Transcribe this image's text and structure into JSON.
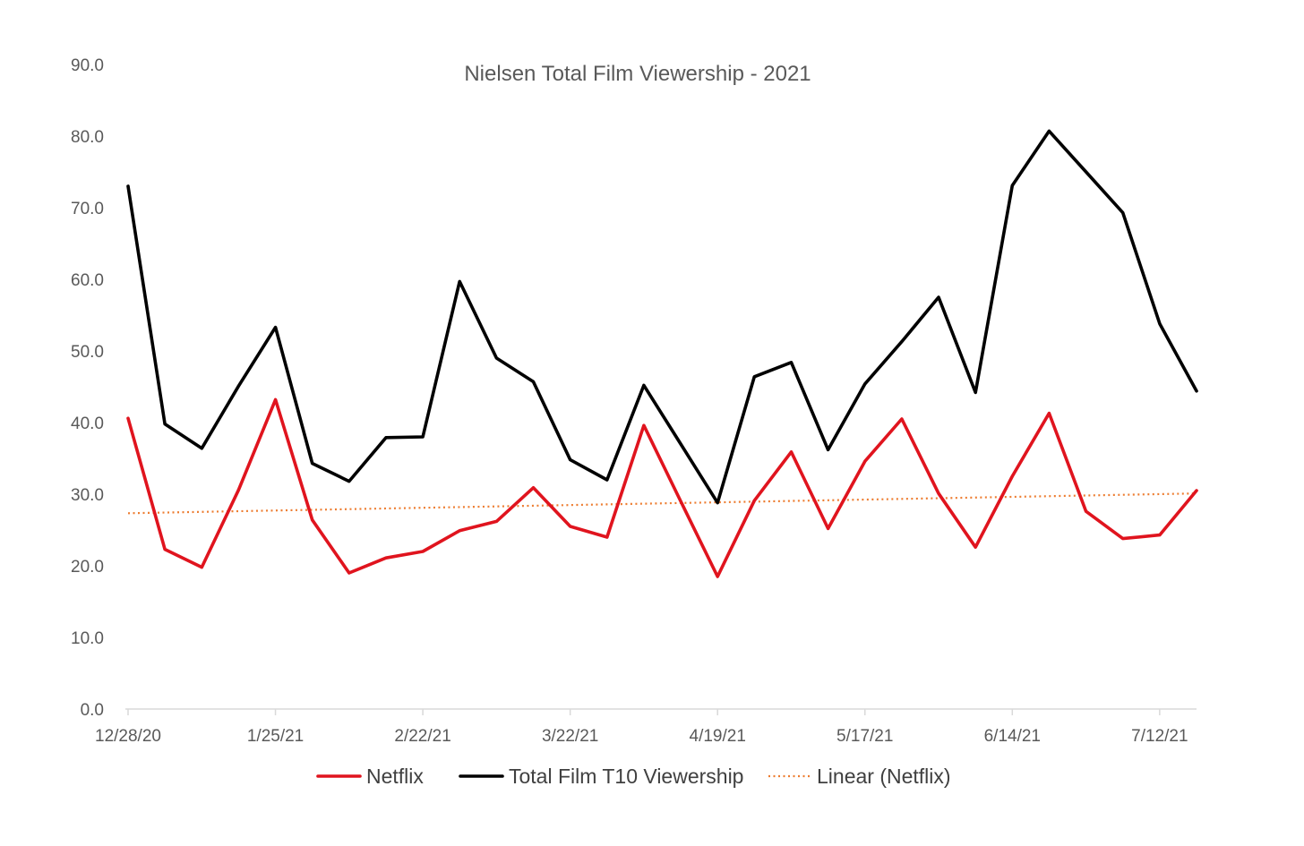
{
  "chart_data": {
    "type": "line",
    "title": "Nielsen Total Film Viewership - 2021",
    "xlabel": "",
    "ylabel": "",
    "ylim": [
      0,
      90
    ],
    "y_ticks": [
      "0.0",
      "10.0",
      "20.0",
      "30.0",
      "40.0",
      "50.0",
      "60.0",
      "70.0",
      "80.0",
      "90.0"
    ],
    "x": [
      "12/28/20",
      "1/4/21",
      "1/11/21",
      "1/18/21",
      "1/25/21",
      "2/1/21",
      "2/8/21",
      "2/15/21",
      "2/22/21",
      "3/1/21",
      "3/8/21",
      "3/15/21",
      "3/22/21",
      "3/29/21",
      "4/5/21",
      "4/12/21",
      "4/19/21",
      "4/26/21",
      "5/3/21",
      "5/10/21",
      "5/17/21",
      "5/24/21",
      "5/31/21",
      "6/7/21",
      "6/14/21",
      "6/21/21",
      "6/28/21",
      "7/5/21",
      "7/12/21",
      "7/19/21"
    ],
    "x_tick_labels": [
      "12/28/20",
      "1/25/21",
      "2/22/21",
      "3/22/21",
      "4/19/21",
      "5/17/21",
      "6/14/21",
      "7/12/21"
    ],
    "x_tick_every": 4,
    "grid": false,
    "legend_position": "bottom",
    "series": [
      {
        "name": "Netflix",
        "color": "#e0141e",
        "style": "solid",
        "values": [
          40.6,
          22.3,
          19.8,
          30.6,
          43.2,
          26.4,
          19.0,
          21.1,
          22.0,
          24.9,
          26.2,
          30.9,
          25.5,
          24.0,
          39.6,
          29.0,
          18.5,
          29.1,
          35.9,
          25.2,
          34.6,
          40.5,
          30.1,
          22.6,
          32.5,
          41.3,
          27.6,
          23.8,
          24.3,
          30.5
        ]
      },
      {
        "name": "Total Film T10 Viewership",
        "color": "#000000",
        "style": "solid",
        "values": [
          73.0,
          39.8,
          36.4,
          45.1,
          53.3,
          34.3,
          31.8,
          37.9,
          38.0,
          59.7,
          49.0,
          45.7,
          34.8,
          32.0,
          45.2,
          37.0,
          28.8,
          46.4,
          48.4,
          36.2,
          45.4,
          51.3,
          57.5,
          44.2,
          73.1,
          80.7,
          75.0,
          69.3,
          53.8,
          44.4
        ]
      },
      {
        "name": "Linear (Netflix)",
        "color": "#ed7d31",
        "style": "dotted",
        "trendline_of": "Netflix"
      }
    ]
  }
}
